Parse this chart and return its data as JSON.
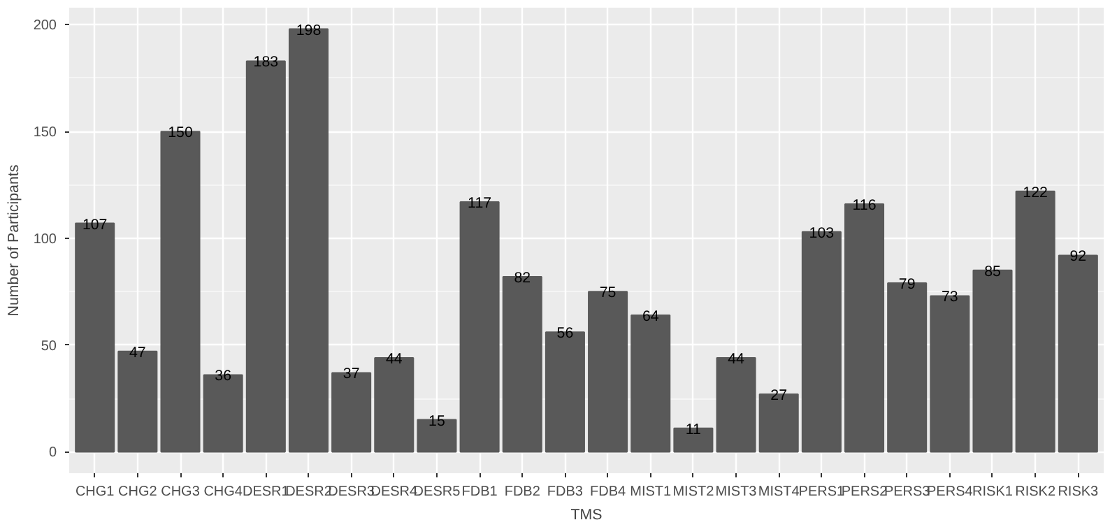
{
  "chart_data": {
    "type": "bar",
    "xlabel": "TMS",
    "ylabel": "Number of Participants",
    "categories": [
      "CHG1",
      "CHG2",
      "CHG3",
      "CHG4",
      "DESR1",
      "DESR2",
      "DESR3",
      "DESR4",
      "DESR5",
      "FDB1",
      "FDB2",
      "FDB3",
      "FDB4",
      "MIST1",
      "MIST2",
      "MIST3",
      "MIST4",
      "PERS1",
      "PERS2",
      "PERS3",
      "PERS4",
      "RISK1",
      "RISK2",
      "RISK3"
    ],
    "values": [
      107,
      47,
      150,
      36,
      183,
      198,
      37,
      44,
      15,
      117,
      82,
      56,
      75,
      64,
      11,
      44,
      27,
      103,
      116,
      79,
      73,
      85,
      122,
      92
    ],
    "color": "#595959",
    "ylim": [
      -10,
      208
    ],
    "yticks": [
      0,
      50,
      100,
      150,
      200
    ],
    "grid": true,
    "data_labels": true
  }
}
